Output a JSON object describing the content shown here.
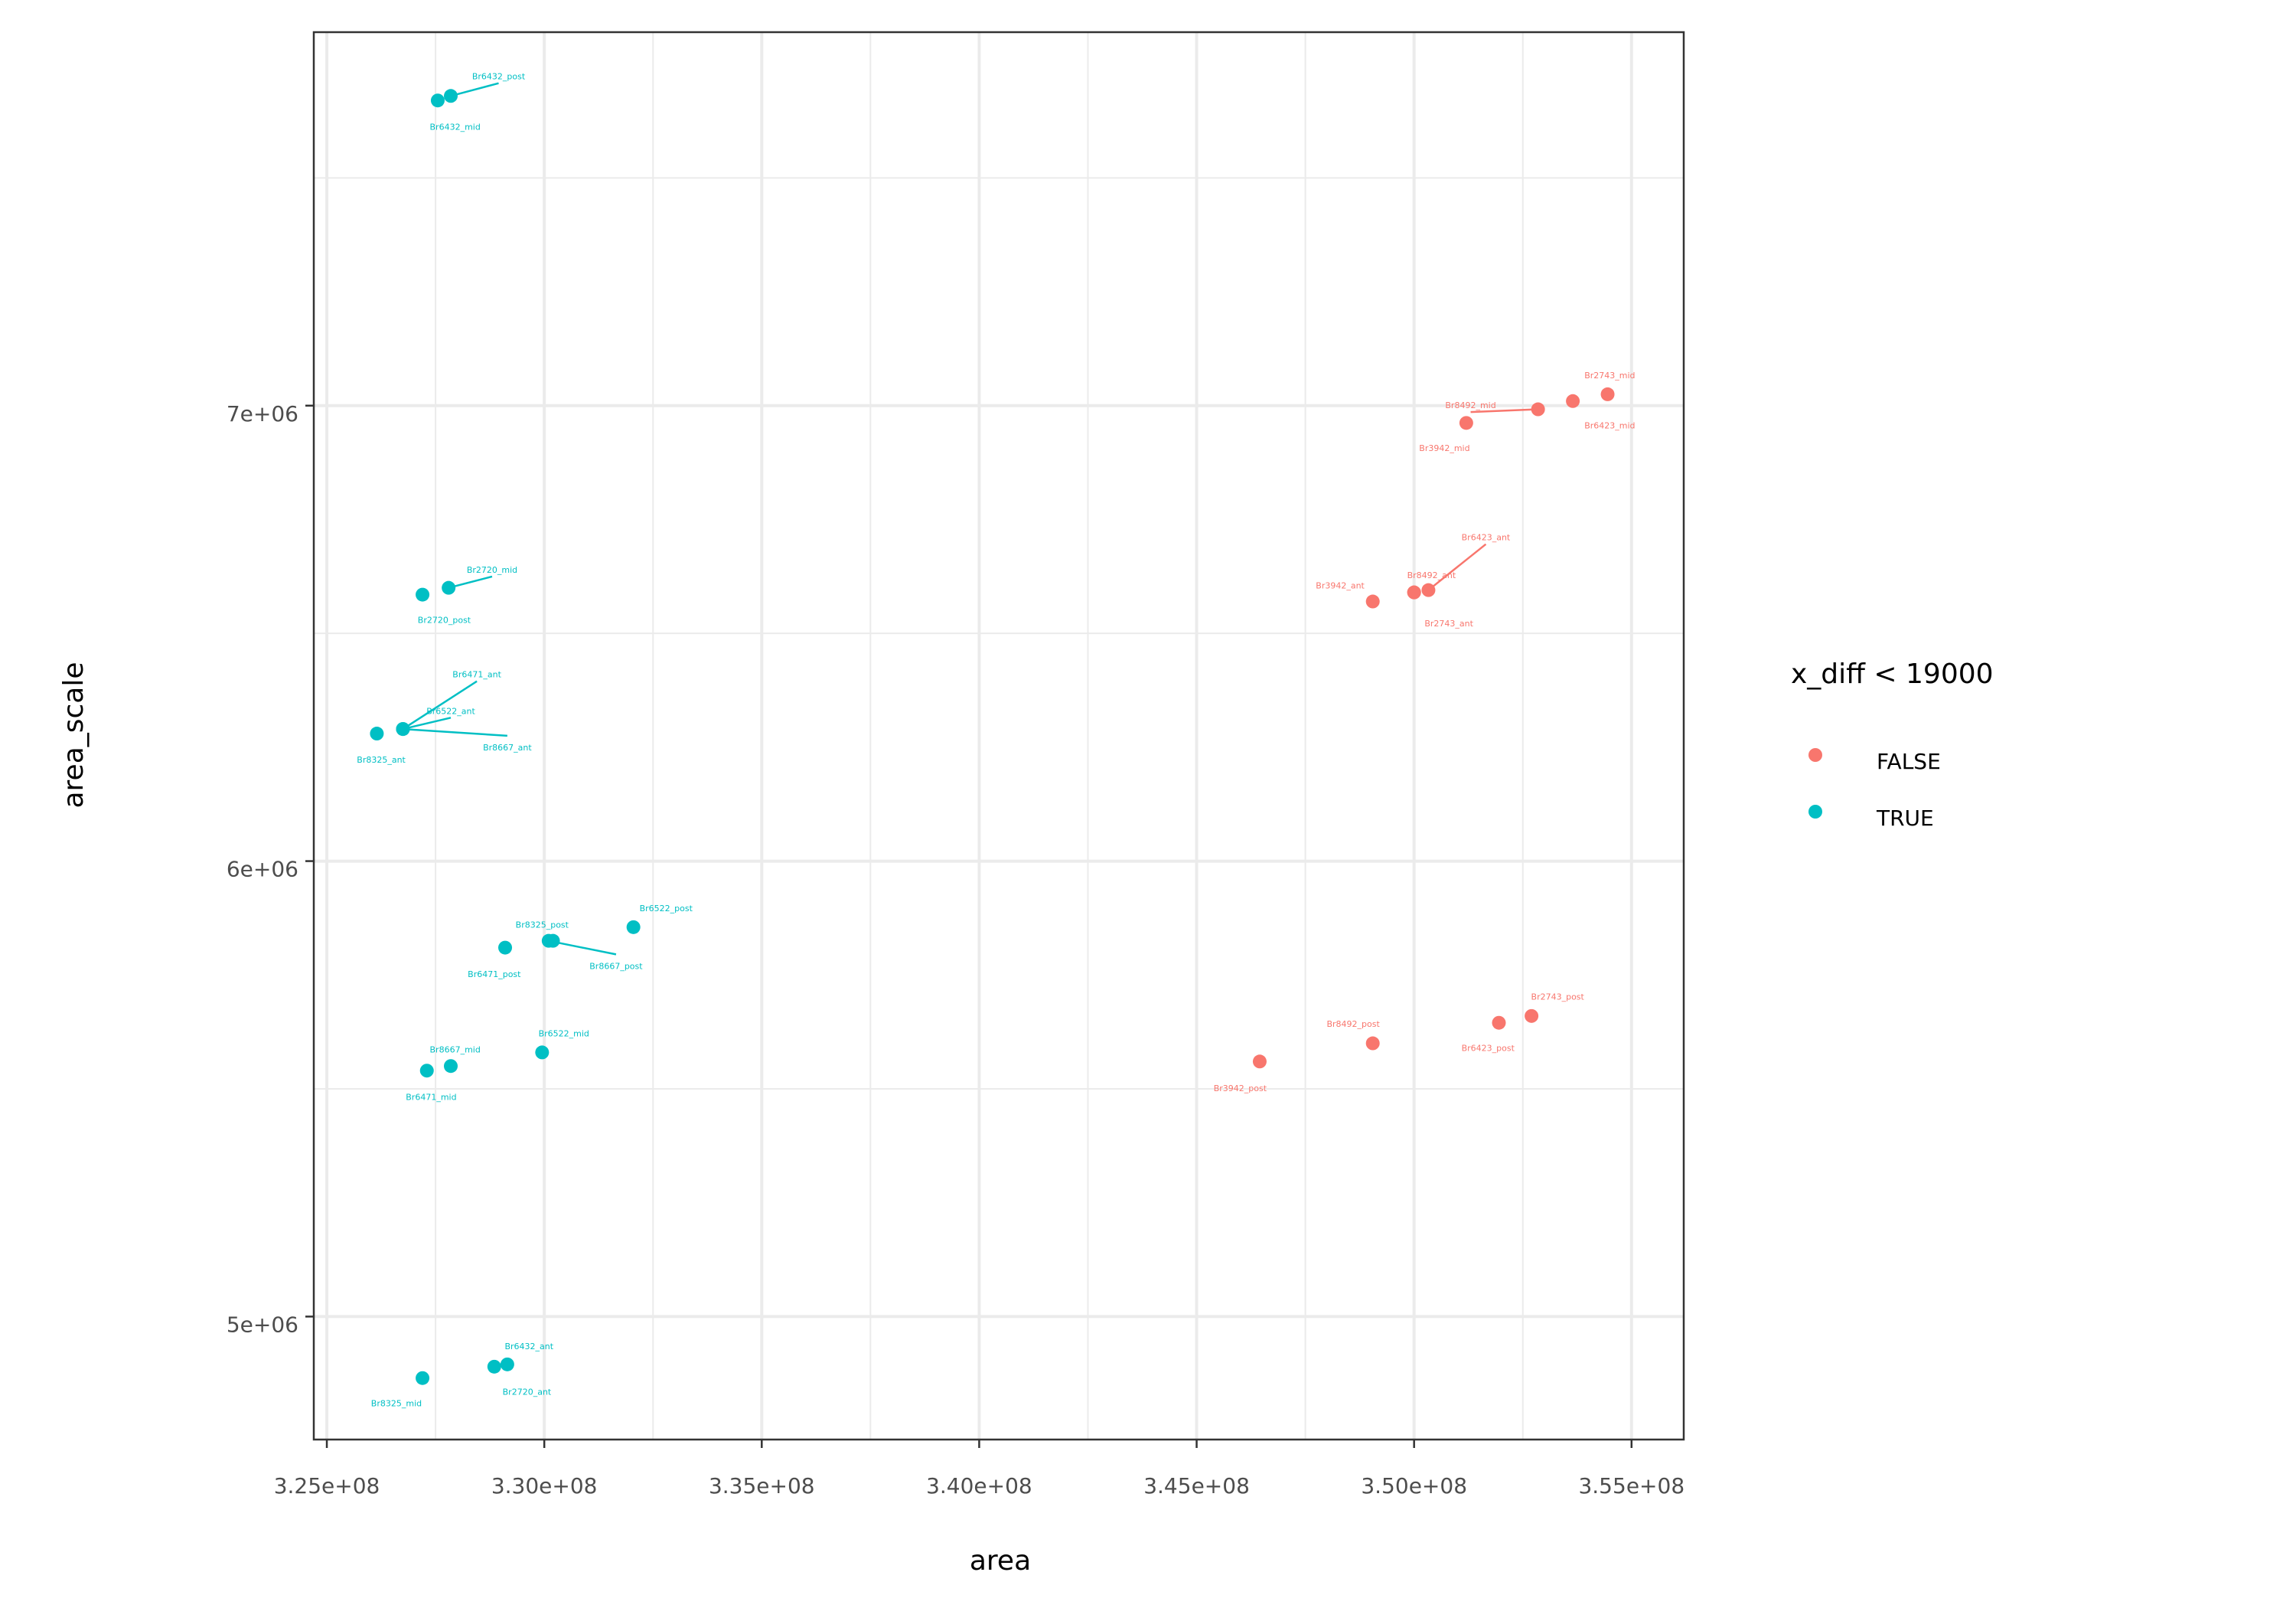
{
  "chart_data": {
    "type": "scatter",
    "xlabel": "area",
    "ylabel": "area_scale",
    "xlim": [
      324700000,
      356200000
    ],
    "ylim": [
      4730000,
      7820000
    ],
    "x_ticks": [
      325000000,
      330000000,
      335000000,
      340000000,
      345000000,
      350000000,
      355000000
    ],
    "x_tick_labels": [
      "3.25e+08",
      "3.30e+08",
      "3.35e+08",
      "3.40e+08",
      "3.45e+08",
      "3.50e+08",
      "3.55e+08"
    ],
    "y_ticks": [
      5000000,
      6000000,
      7000000
    ],
    "y_tick_labels": [
      "5e+06",
      "6e+06",
      "7e+06"
    ],
    "grid": true,
    "legend": {
      "title": "x_diff < 19000",
      "placement": "right",
      "entries": [
        {
          "label": "FALSE",
          "color": "#F8766D"
        },
        {
          "label": "TRUE",
          "color": "#00BFC4"
        }
      ]
    },
    "series": [
      {
        "name": "FALSE",
        "color": "#F8766D",
        "points": [
          {
            "label": "Br2743_mid",
            "x": 354450000,
            "y": 7025000,
            "lx": 354500000,
            "ly": 7072000
          },
          {
            "label": "Br6423_mid",
            "x": 353650000,
            "y": 7010000,
            "lx": 354500000,
            "ly": 6962000
          },
          {
            "label": "Br8492_mid",
            "x": 352850000,
            "y": 6992000,
            "lx": 351300000,
            "ly": 7006000
          },
          {
            "label": "Br3942_mid",
            "x": 351200000,
            "y": 6962000,
            "lx": 350700000,
            "ly": 6912000
          },
          {
            "label": "Br6423_ant",
            "x": 350330000,
            "y": 6595000,
            "lx": 351650000,
            "ly": 6716000
          },
          {
            "label": "Br8492_ant",
            "x": 350000000,
            "y": 6590000,
            "lx": 350400000,
            "ly": 6633000
          },
          {
            "label": "Br3942_ant",
            "x": 349050000,
            "y": 6570000,
            "lx": 348300000,
            "ly": 6610000
          },
          {
            "label": "Br2743_ant",
            "x": 350000000,
            "y": 6590000,
            "lx": 350800000,
            "ly": 6527000
          },
          {
            "label": "Br2743_post",
            "x": 352700000,
            "y": 5660000,
            "lx": 353300000,
            "ly": 5708000
          },
          {
            "label": "Br6423_post",
            "x": 351950000,
            "y": 5645000,
            "lx": 351700000,
            "ly": 5595000
          },
          {
            "label": "Br8492_post",
            "x": 349050000,
            "y": 5600000,
            "lx": 348600000,
            "ly": 5648000
          },
          {
            "label": "Br3942_post",
            "x": 346450000,
            "y": 5560000,
            "lx": 346000000,
            "ly": 5507000
          }
        ]
      },
      {
        "name": "TRUE",
        "color": "#00BFC4",
        "points": [
          {
            "label": "Br6432_post",
            "x": 327850000,
            "y": 7680000,
            "lx": 328950000,
            "ly": 7728000
          },
          {
            "label": "Br6432_mid",
            "x": 327550000,
            "y": 7670000,
            "lx": 327950000,
            "ly": 7617000
          },
          {
            "label": "Br2720_mid",
            "x": 327800000,
            "y": 6600000,
            "lx": 328800000,
            "ly": 6645000
          },
          {
            "label": "Br2720_post",
            "x": 327200000,
            "y": 6585000,
            "lx": 327700000,
            "ly": 6535000
          },
          {
            "label": "Br6471_ant",
            "x": 326750000,
            "y": 6290000,
            "lx": 328450000,
            "ly": 6415000
          },
          {
            "label": "Br6522_ant",
            "x": 326750000,
            "y": 6290000,
            "lx": 327850000,
            "ly": 6335000
          },
          {
            "label": "Br8667_ant",
            "x": 326750000,
            "y": 6290000,
            "lx": 329150000,
            "ly": 6255000
          },
          {
            "label": "Br8325_ant",
            "x": 326150000,
            "y": 6280000,
            "lx": 326250000,
            "ly": 6228000
          },
          {
            "label": "Br6522_post",
            "x": 332050000,
            "y": 5855000,
            "lx": 332800000,
            "ly": 5902000
          },
          {
            "label": "Br8325_post",
            "x": 330200000,
            "y": 5825000,
            "lx": 329950000,
            "ly": 5866000
          },
          {
            "label": "Br8667_post",
            "x": 330100000,
            "y": 5825000,
            "lx": 331650000,
            "ly": 5775000
          },
          {
            "label": "Br6471_post",
            "x": 329100000,
            "y": 5810000,
            "lx": 328850000,
            "ly": 5757000
          },
          {
            "label": "Br6522_mid",
            "x": 329950000,
            "y": 5580000,
            "lx": 330450000,
            "ly": 5627000
          },
          {
            "label": "Br8667_mid",
            "x": 327850000,
            "y": 5550000,
            "lx": 327950000,
            "ly": 5592000
          },
          {
            "label": "Br6471_mid",
            "x": 327300000,
            "y": 5540000,
            "lx": 327400000,
            "ly": 5487000
          },
          {
            "label": "Br6432_ant",
            "x": 329150000,
            "y": 4895000,
            "lx": 329650000,
            "ly": 4940000
          },
          {
            "label": "Br2720_ant",
            "x": 328850000,
            "y": 4890000,
            "lx": 329600000,
            "ly": 4840000
          },
          {
            "label": "Br8325_mid",
            "x": 327200000,
            "y": 4865000,
            "lx": 326600000,
            "ly": 4815000
          }
        ]
      }
    ]
  }
}
